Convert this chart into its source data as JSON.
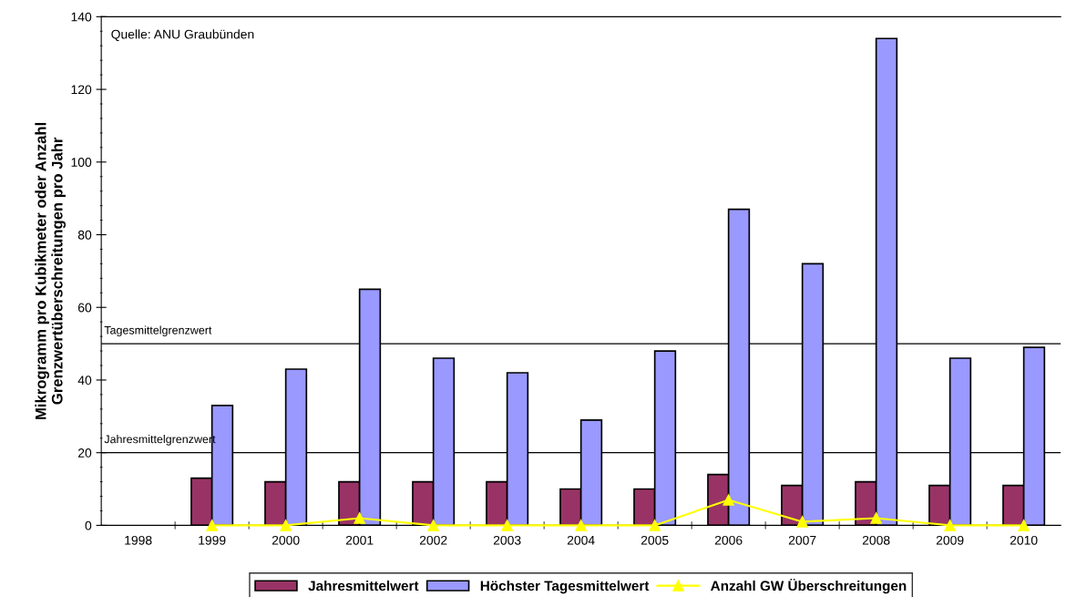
{
  "chart_data": {
    "type": "bar",
    "ylabel": "Mikrogramm pro Kubikmeter oder Anzahl\nGrenzwertüberschreitungen pro Jahr",
    "categories": [
      "1998",
      "1999",
      "2000",
      "2001",
      "2002",
      "2003",
      "2004",
      "2005",
      "2006",
      "2007",
      "2008",
      "2009",
      "2010"
    ],
    "series": [
      {
        "name": "Jahresmittelwert",
        "color": "#993366",
        "values": [
          null,
          13,
          12,
          12,
          12,
          12,
          10,
          10,
          14,
          11,
          12,
          11,
          11
        ]
      },
      {
        "name": "Höchster Tagesmittelwert",
        "color": "#9999ff",
        "values": [
          null,
          33,
          43,
          65,
          46,
          42,
          29,
          48,
          87,
          72,
          134,
          46,
          49
        ]
      },
      {
        "name": "Anzahl GW Überschreitungen",
        "type": "line",
        "color": "#ffff00",
        "marker": "triangle",
        "values": [
          null,
          0,
          0,
          2,
          0,
          0,
          0,
          0,
          7,
          1,
          2,
          0,
          0
        ]
      }
    ],
    "ylim": [
      0,
      140
    ],
    "yticks": [
      0,
      20,
      40,
      60,
      80,
      100,
      120,
      140
    ],
    "ref_lines": [
      {
        "axis": "y",
        "value": 50,
        "label": "Tagesmittelgrenzwert",
        "color": "#000000"
      },
      {
        "axis": "y",
        "value": 20,
        "label": "Jahresmittelgrenzwert",
        "color": "#000000"
      }
    ],
    "annotations": [
      "Quelle: ANU Graubünden"
    ],
    "legend": "bottom",
    "grid": false
  }
}
